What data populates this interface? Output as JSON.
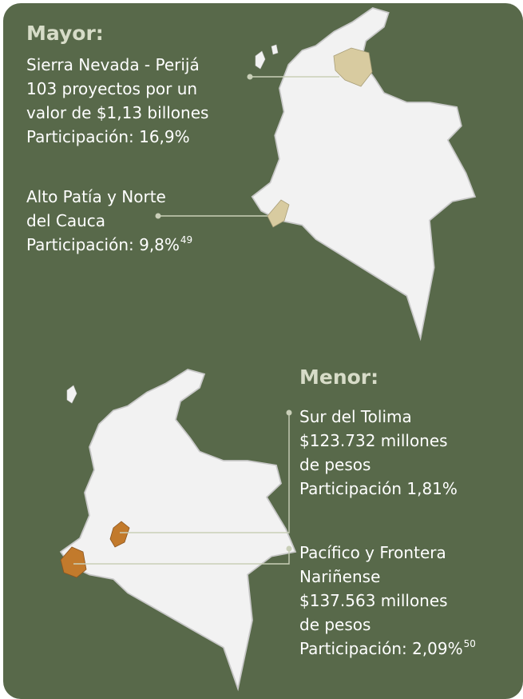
{
  "mayor": {
    "heading": "Mayor:",
    "items": [
      {
        "lines": [
          "Sierra Nevada - Perijá",
          "103 proyectos por un",
          "valor de $1,13 billones",
          "Participación: 16,9%"
        ]
      },
      {
        "lines": [
          "Alto Patía y Norte",
          "del Cauca",
          "Participación: 9,8%"
        ],
        "note": "49"
      }
    ]
  },
  "menor": {
    "heading": "Menor:",
    "items": [
      {
        "lines": [
          "Sur del Tolima",
          "$123.732 millones",
          "de pesos",
          "Participación 1,81%"
        ]
      },
      {
        "lines": [
          "Pacífico y Frontera",
          "Nariñense",
          "$137.563 millones",
          "de pesos",
          "Participación: 2,09%"
        ],
        "note": "50"
      }
    ]
  }
}
